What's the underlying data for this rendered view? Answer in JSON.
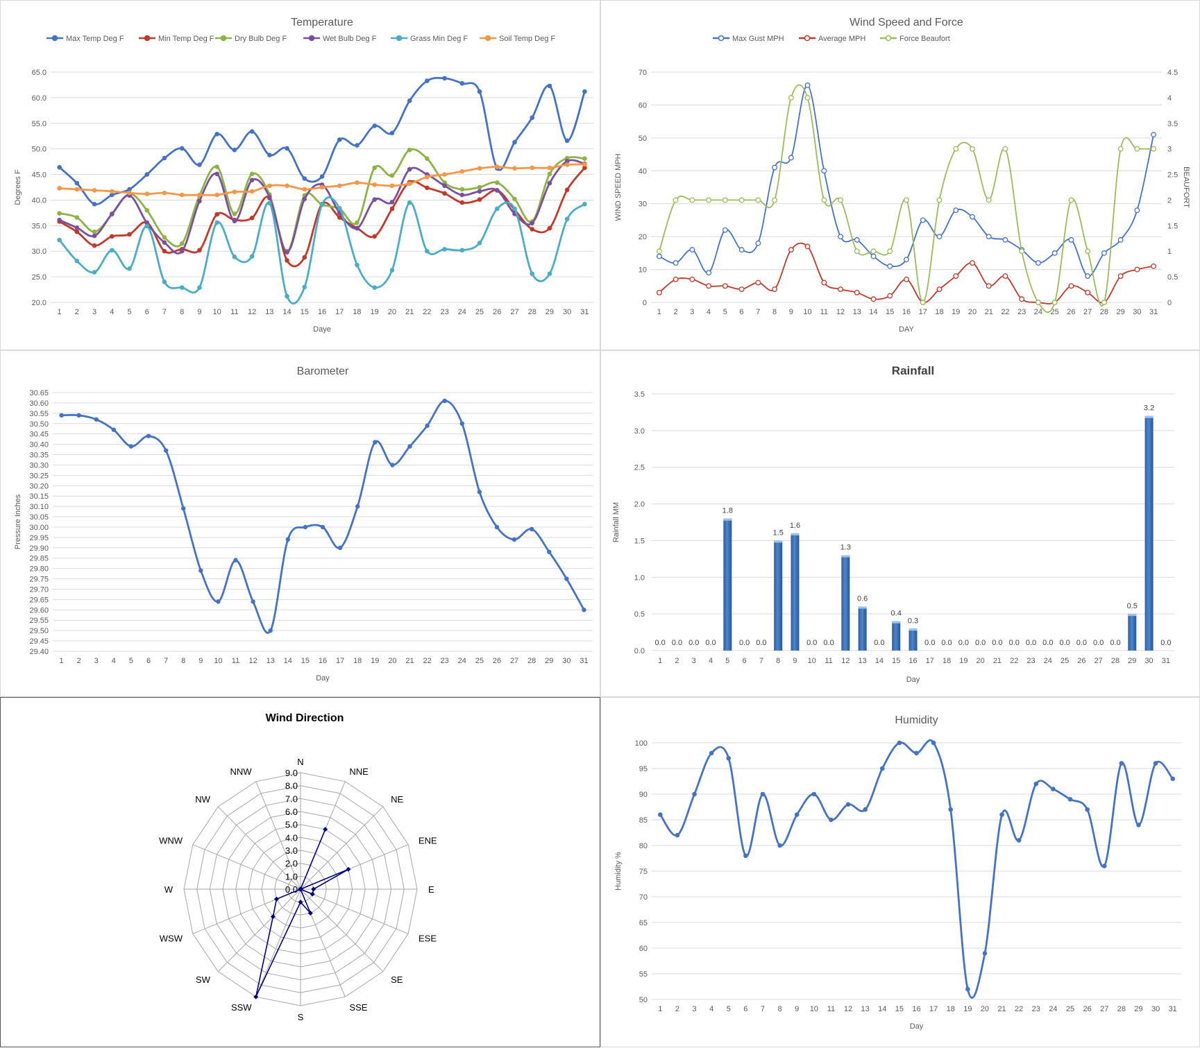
{
  "chart_data": [
    {
      "id": "temperature",
      "type": "line",
      "title": "Temperature",
      "xlabel": "Daye",
      "ylabel": "Degrees F",
      "ylim": [
        20.0,
        65.0
      ],
      "y_ticks": [
        "20.0",
        "25.0",
        "30.0",
        "35.0",
        "40.0",
        "45.0",
        "50.0",
        "55.0",
        "60.0",
        "65.0"
      ],
      "x": [
        "1",
        "2",
        "3",
        "4",
        "5",
        "6",
        "7",
        "8",
        "9",
        "10",
        "11",
        "12",
        "13",
        "14",
        "15",
        "16",
        "17",
        "18",
        "19",
        "20",
        "21",
        "22",
        "23",
        "24",
        "25",
        "26",
        "27",
        "28",
        "29",
        "30",
        "31"
      ],
      "legend_position": "top",
      "grid": true,
      "series": [
        {
          "name": "Max Temp Deg F",
          "color": "#4472c4",
          "values": [
            46.4,
            43.3,
            39.2,
            41.0,
            42.1,
            45.0,
            48.2,
            50.1,
            46.9,
            52.9,
            49.8,
            53.4,
            48.8,
            50.1,
            44.2,
            44.6,
            51.8,
            50.7,
            54.5,
            53.1,
            59.4,
            63.3,
            63.8,
            62.8,
            61.2,
            46.2,
            51.3,
            56.1,
            62.3,
            51.6,
            61.2
          ]
        },
        {
          "name": "Min Temp Deg F",
          "color": "#c0392b",
          "values": [
            35.8,
            33.8,
            31.1,
            32.9,
            33.3,
            35.6,
            30.0,
            30.4,
            30.2,
            37.2,
            36.1,
            36.5,
            40.4,
            28.2,
            28.8,
            39.2,
            36.6,
            34.5,
            32.9,
            38.3,
            43.5,
            42.4,
            41.3,
            39.5,
            40.1,
            41.9,
            38.1,
            34.3,
            34.5,
            42.0,
            46.3
          ]
        },
        {
          "name": "Dry Bulb Deg F",
          "color": "#8db347",
          "values": [
            37.4,
            36.6,
            33.8,
            37.2,
            41.2,
            38.0,
            32.7,
            31.5,
            40.9,
            46.5,
            37.3,
            45.1,
            41.1,
            30.0,
            40.9,
            39.1,
            38.3,
            35.6,
            46.3,
            44.8,
            49.8,
            48.1,
            43.4,
            42.1,
            42.5,
            43.4,
            40.2,
            35.8,
            45.1,
            48.2,
            48.1
          ]
        },
        {
          "name": "Wet Bulb Deg F",
          "color": "#7b4fa0",
          "values": [
            36.1,
            34.6,
            33.0,
            37.3,
            40.9,
            35.5,
            31.7,
            30.0,
            39.8,
            45.1,
            35.9,
            43.9,
            40.6,
            29.8,
            40.2,
            43.0,
            37.5,
            34.5,
            40.1,
            39.6,
            46.0,
            45.0,
            42.8,
            41.0,
            41.7,
            41.9,
            37.3,
            35.5,
            43.3,
            47.6,
            47.1
          ]
        },
        {
          "name": "Grass Min Deg F",
          "color": "#4bacc6",
          "values": [
            32.2,
            28.1,
            25.9,
            30.2,
            26.6,
            34.9,
            24.0,
            22.9,
            22.9,
            35.6,
            28.9,
            29.0,
            39.4,
            21.2,
            23.0,
            39.1,
            38.4,
            27.3,
            22.9,
            26.3,
            39.5,
            30.0,
            30.4,
            30.2,
            31.6,
            38.3,
            38.3,
            25.6,
            25.6,
            36.3,
            39.2
          ]
        },
        {
          "name": "Soil Temp Deg F",
          "color": "#f79646",
          "values": [
            42.3,
            42.1,
            41.9,
            41.7,
            41.4,
            41.2,
            41.4,
            41.0,
            41.0,
            41.0,
            41.6,
            41.7,
            42.8,
            42.8,
            42.1,
            42.5,
            42.8,
            43.4,
            43.0,
            42.8,
            43.2,
            44.5,
            45.0,
            45.6,
            46.2,
            46.5,
            46.2,
            46.3,
            46.3,
            46.9,
            47.0
          ]
        }
      ]
    },
    {
      "id": "wind",
      "type": "line",
      "title": "Wind Speed and Force",
      "xlabel": "DAY",
      "ylabel": "WIND SPEED MPH",
      "y2label": "BEAUFORT",
      "ylim": [
        0,
        70
      ],
      "y2lim": [
        0,
        4.5
      ],
      "y_ticks": [
        "0",
        "10",
        "20",
        "30",
        "40",
        "50",
        "60",
        "70"
      ],
      "y2_ticks": [
        "0",
        "0.5",
        "1",
        "1.5",
        "2",
        "2.5",
        "3",
        "3.5",
        "4",
        "4.5"
      ],
      "x": [
        "1",
        "2",
        "3",
        "4",
        "5",
        "6",
        "7",
        "8",
        "9",
        "10",
        "11",
        "12",
        "13",
        "14",
        "15",
        "16",
        "17",
        "18",
        "19",
        "20",
        "21",
        "22",
        "23",
        "24",
        "25",
        "26",
        "27",
        "28",
        "29",
        "30",
        "31"
      ],
      "legend_position": "top",
      "grid": true,
      "series": [
        {
          "name": "Max Gust MPH",
          "axis": "left",
          "color": "#4472c4",
          "values": [
            14,
            12,
            16,
            9,
            22,
            16,
            18,
            41,
            44,
            66,
            40,
            20,
            19,
            14,
            11,
            13,
            25,
            20,
            28,
            26,
            20,
            19,
            16,
            12,
            15,
            19,
            8,
            15,
            19,
            28,
            51
          ]
        },
        {
          "name": "Average MPH",
          "axis": "left",
          "color": "#c0392b",
          "values": [
            3,
            7,
            7,
            5,
            5,
            4,
            6,
            4,
            16,
            17,
            6,
            4,
            3,
            1,
            2,
            7,
            0,
            4,
            8,
            12,
            5,
            8,
            1,
            0,
            0,
            5,
            3,
            0,
            8,
            10,
            11
          ]
        },
        {
          "name": "Force Beaufort",
          "axis": "right",
          "color": "#9bbb59",
          "values": [
            1,
            2,
            2,
            2,
            2,
            2,
            2,
            2,
            4,
            4,
            2,
            2,
            1,
            1,
            1,
            2,
            0,
            2,
            3,
            3,
            2,
            3,
            1,
            0,
            0,
            2,
            1,
            0,
            3,
            3,
            3
          ]
        }
      ]
    },
    {
      "id": "barometer",
      "type": "line",
      "title": "Barometer",
      "xlabel": "Day",
      "ylabel": "Pressure Inches",
      "ylim": [
        29.4,
        30.65
      ],
      "y_ticks": [
        "29.40",
        "29.45",
        "29.50",
        "29.55",
        "29.60",
        "29.65",
        "29.70",
        "29.75",
        "29.80",
        "29.85",
        "29.90",
        "29.95",
        "30.00",
        "30.05",
        "30.10",
        "30.15",
        "30.20",
        "30.25",
        "30.30",
        "30.35",
        "30.40",
        "30.45",
        "30.50",
        "30.55",
        "30.60",
        "30.65"
      ],
      "x": [
        "1",
        "2",
        "3",
        "4",
        "5",
        "6",
        "7",
        "8",
        "9",
        "10",
        "11",
        "12",
        "13",
        "14",
        "15",
        "16",
        "17",
        "18",
        "19",
        "20",
        "21",
        "22",
        "23",
        "24",
        "25",
        "26",
        "27",
        "28",
        "29",
        "30",
        "31"
      ],
      "grid": true,
      "series": [
        {
          "color": "#4472c4",
          "values": [
            30.54,
            30.54,
            30.52,
            30.47,
            30.39,
            30.44,
            30.37,
            30.09,
            29.79,
            29.64,
            29.84,
            29.64,
            29.5,
            29.94,
            30.0,
            30.0,
            29.9,
            30.1,
            30.41,
            30.3,
            30.39,
            30.49,
            30.61,
            30.5,
            30.17,
            30.0,
            29.94,
            29.99,
            29.88,
            29.75,
            29.6
          ]
        }
      ]
    },
    {
      "id": "rainfall",
      "type": "bar",
      "title": "Rainfall",
      "xlabel": "Day",
      "ylabel": "Rainfall MM",
      "ylim": [
        0,
        3.5
      ],
      "y_ticks": [
        "0.0",
        "0.5",
        "1.0",
        "1.5",
        "2.0",
        "2.5",
        "3.0",
        "3.5"
      ],
      "categories": [
        "1",
        "2",
        "3",
        "4",
        "5",
        "6",
        "7",
        "8",
        "9",
        "10",
        "11",
        "12",
        "13",
        "14",
        "15",
        "16",
        "17",
        "18",
        "19",
        "20",
        "21",
        "22",
        "23",
        "24",
        "25",
        "26",
        "27",
        "28",
        "29",
        "30",
        "31"
      ],
      "values": [
        0.0,
        0.0,
        0.0,
        0.0,
        1.8,
        0.0,
        0.0,
        1.5,
        1.6,
        0.0,
        0.0,
        1.3,
        0.6,
        0.0,
        0.4,
        0.3,
        0.0,
        0.0,
        0.0,
        0.0,
        0.0,
        0.0,
        0.0,
        0.0,
        0.0,
        0.0,
        0.0,
        0.0,
        0.5,
        3.2,
        0.0
      ],
      "data_labels": [
        "0.0",
        "0.0",
        "0.0",
        "0.0",
        "1.8",
        "0.0",
        "0.0",
        "1.5",
        "1.6",
        "0.0",
        "0.0",
        "1.3",
        "0.6",
        "0.0",
        "0.4",
        "0.3",
        "0.0",
        "0.0",
        "0.0",
        "0.0",
        "0.0",
        "0.0",
        "0.0",
        "0.0",
        "0.0",
        "0.0",
        "0.0",
        "0.0",
        "0.5",
        "3.2",
        "0.0"
      ],
      "bar_color": "#4a86d0",
      "grid": true
    },
    {
      "id": "wind_direction",
      "type": "radar",
      "title": "Wind Direction",
      "rlim": [
        0,
        9
      ],
      "r_ticks": [
        "0.0",
        "1.0",
        "2.0",
        "3.0",
        "4.0",
        "5.0",
        "6.0",
        "7.0",
        "8.0",
        "9.0"
      ],
      "categories": [
        "N",
        "NNE",
        "NE",
        "ENE",
        "E",
        "ESE",
        "SE",
        "SSE",
        "S",
        "SSW",
        "SW",
        "WSW",
        "W",
        "WNW",
        "NW",
        "NNW"
      ],
      "values": [
        0,
        5,
        0,
        4,
        1,
        1,
        0,
        2,
        1,
        9,
        3,
        2,
        0,
        0,
        0,
        0
      ],
      "color": "#000080"
    },
    {
      "id": "humidity",
      "type": "line",
      "title": "Humidity",
      "xlabel": "Day",
      "ylabel": "Humidity %",
      "ylim": [
        50,
        100
      ],
      "y_ticks": [
        "50",
        "55",
        "60",
        "65",
        "70",
        "75",
        "80",
        "85",
        "90",
        "95",
        "100"
      ],
      "x": [
        "1",
        "2",
        "3",
        "4",
        "5",
        "6",
        "7",
        "8",
        "9",
        "10",
        "11",
        "12",
        "13",
        "14",
        "15",
        "16",
        "17",
        "18",
        "19",
        "20",
        "21",
        "22",
        "23",
        "24",
        "25",
        "26",
        "27",
        "28",
        "29",
        "30",
        "31"
      ],
      "grid": true,
      "series": [
        {
          "color": "#4472c4",
          "values": [
            86,
            82,
            90,
            98,
            97,
            78,
            90,
            80,
            86,
            90,
            85,
            88,
            87,
            95,
            100,
            98,
            100,
            87,
            52,
            59,
            86,
            81,
            92,
            91,
            89,
            87,
            76,
            96,
            84,
            96,
            93
          ]
        }
      ]
    }
  ]
}
